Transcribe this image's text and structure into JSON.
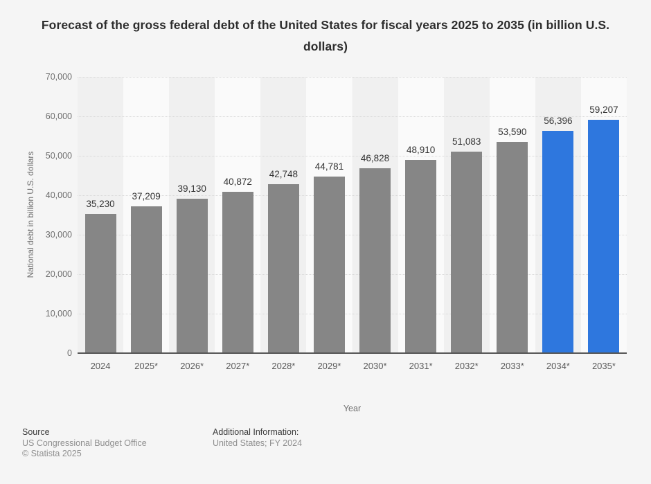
{
  "title": "Forecast of the gross federal debt of the United States for fiscal years 2025 to 2035 (in billion U.S. dollars)",
  "chart_data": {
    "type": "bar",
    "categories": [
      "2024",
      "2025*",
      "2026*",
      "2027*",
      "2028*",
      "2029*",
      "2030*",
      "2031*",
      "2032*",
      "2033*",
      "2034*",
      "2035*"
    ],
    "values": [
      35230,
      37209,
      39130,
      40872,
      42748,
      44781,
      46828,
      48910,
      51083,
      53590,
      56396,
      59207
    ],
    "value_labels": [
      "35,230",
      "37,209",
      "39,130",
      "40,872",
      "42,748",
      "44,781",
      "46,828",
      "48,910",
      "51,083",
      "53,590",
      "56,396",
      "59,207"
    ],
    "xlabel": "Year",
    "ylabel": "National debt in billion U.S. dollars",
    "ylim": [
      0,
      70000
    ],
    "ytick_interval": 10000,
    "ytick_labels": [
      "0",
      "10,000",
      "20,000",
      "30,000",
      "40,000",
      "50,000",
      "60,000",
      "70,000"
    ],
    "grid": "horizontal-dotted",
    "legend": "none",
    "bar_color": "#868686",
    "highlight_color": "#2e77de",
    "highlight_indices": [
      10,
      11
    ]
  },
  "footer": {
    "source_label": "Source",
    "source_line1": "US Congressional Budget Office",
    "source_line2": "© Statista 2025",
    "additional_label": "Additional Information:",
    "additional_line1": "United States; FY 2024"
  }
}
